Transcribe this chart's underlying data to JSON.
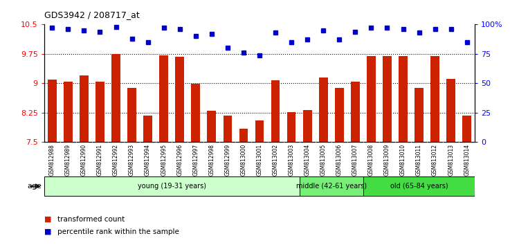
{
  "title": "GDS3942 / 208717_at",
  "categories": [
    "GSM812988",
    "GSM812989",
    "GSM812990",
    "GSM812991",
    "GSM812992",
    "GSM812993",
    "GSM812994",
    "GSM812995",
    "GSM812996",
    "GSM812997",
    "GSM812998",
    "GSM812999",
    "GSM813000",
    "GSM813001",
    "GSM813002",
    "GSM813003",
    "GSM813004",
    "GSM813005",
    "GSM813006",
    "GSM813007",
    "GSM813008",
    "GSM813009",
    "GSM813010",
    "GSM813011",
    "GSM813012",
    "GSM813013",
    "GSM813014"
  ],
  "bar_values": [
    9.1,
    9.05,
    9.2,
    9.05,
    9.75,
    8.88,
    8.18,
    9.72,
    9.68,
    8.98,
    8.3,
    8.18,
    7.84,
    8.05,
    9.08,
    8.26,
    8.31,
    9.15,
    8.88,
    9.05,
    9.7,
    9.7,
    9.7,
    8.88,
    9.7,
    9.12,
    8.18
  ],
  "percentile_values": [
    97,
    96,
    95,
    94,
    98,
    88,
    85,
    97,
    96,
    90,
    92,
    80,
    76,
    74,
    93,
    85,
    87,
    95,
    87,
    94,
    97,
    97,
    96,
    93,
    96,
    96,
    85
  ],
  "bar_color": "#cc2200",
  "percentile_color": "#0000cc",
  "ylim_left": [
    7.5,
    10.5
  ],
  "ylim_right": [
    0,
    100
  ],
  "yticks_left": [
    7.5,
    8.25,
    9.0,
    9.75,
    10.5
  ],
  "yticks_right": [
    0,
    25,
    50,
    75,
    100
  ],
  "ytick_labels_right": [
    "0",
    "25",
    "50",
    "75",
    "100%"
  ],
  "ytick_labels_left": [
    "7.5",
    "8.25",
    "9",
    "9.75",
    "10.5"
  ],
  "hlines": [
    8.25,
    9.0,
    9.75
  ],
  "groups": [
    {
      "label": "young (19-31 years)",
      "start": 0,
      "end": 16,
      "color": "#ccffcc"
    },
    {
      "label": "middle (42-61 years)",
      "start": 16,
      "end": 20,
      "color": "#77ee77"
    },
    {
      "label": "old (65-84 years)",
      "start": 20,
      "end": 27,
      "color": "#44dd44"
    }
  ],
  "age_label": "age",
  "legend_bar_label": "transformed count",
  "legend_pct_label": "percentile rank within the sample",
  "background_color": "#ffffff",
  "plot_bg_color": "#ffffff"
}
